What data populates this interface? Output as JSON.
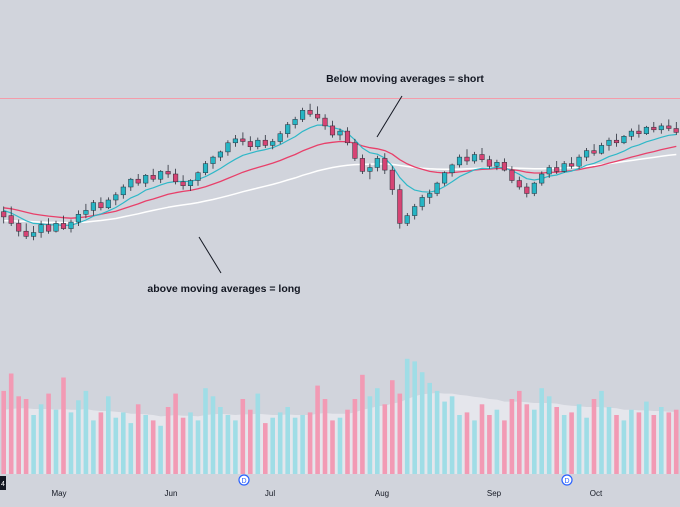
{
  "colors": {
    "background": "#d1d4dc",
    "bull_candle": "#26b5c4",
    "bear_candle": "#d64474",
    "ma_fast": "#2fb8c8",
    "ma_mid": "#e8406a",
    "ma_slow": "#ffffff",
    "resistance_line": "#ff8a9a",
    "bull_volume": "#9fdde6",
    "bear_volume": "#f29ab4",
    "volume_average_area": "#e9e9ef",
    "text": "#131722"
  },
  "annotations": {
    "short_label": "Below moving averages = short",
    "long_label": "above moving averages = long"
  },
  "x_axis": {
    "months": [
      "May",
      "Jun",
      "Jul",
      "Aug",
      "Sep",
      "Oct"
    ],
    "event_markers": [
      "D",
      "D"
    ],
    "corner_label": "4"
  },
  "chart_data": [
    {
      "type": "candlestick",
      "title": "",
      "x_ticks": [
        "May",
        "Jun",
        "Jul",
        "Aug",
        "Sep",
        "Oct"
      ],
      "y_range": [
        0,
        100
      ],
      "resistance_level": 89,
      "ohlc": [
        [
          45.5,
          47.5,
          41,
          43.5
        ],
        [
          44,
          47.5,
          40,
          41
        ],
        [
          41,
          42.5,
          36,
          38
        ],
        [
          38,
          41,
          35,
          36
        ],
        [
          36,
          40,
          34.5,
          37.5
        ],
        [
          37.5,
          42,
          35.5,
          40.5
        ],
        [
          40.5,
          43,
          37,
          38
        ],
        [
          38,
          42,
          37.5,
          41
        ],
        [
          41,
          44,
          38.5,
          39
        ],
        [
          39,
          42.5,
          37.5,
          41.5
        ],
        [
          41.5,
          46,
          40,
          44.5
        ],
        [
          44.5,
          48.5,
          43,
          46
        ],
        [
          46,
          50,
          44,
          49
        ],
        [
          49,
          51,
          46,
          47
        ],
        [
          47,
          51,
          46.5,
          50
        ],
        [
          50,
          53,
          48,
          52
        ],
        [
          52,
          56,
          50.5,
          55
        ],
        [
          55,
          58.5,
          53.5,
          58
        ],
        [
          58,
          60,
          55.5,
          56.5
        ],
        [
          56.5,
          60,
          55,
          59.5
        ],
        [
          59.5,
          62,
          57,
          58
        ],
        [
          58,
          61.5,
          56.5,
          61
        ],
        [
          61,
          63.5,
          58.5,
          60
        ],
        [
          60,
          62,
          56,
          57
        ],
        [
          57,
          59.5,
          54,
          55.5
        ],
        [
          55.5,
          58,
          53.5,
          57.5
        ],
        [
          57.5,
          61,
          55.5,
          60.5
        ],
        [
          60.5,
          65,
          59.5,
          64
        ],
        [
          64,
          67,
          62,
          66.5
        ],
        [
          66.5,
          69,
          65,
          68.5
        ],
        [
          68.5,
          73,
          67,
          72
        ],
        [
          72,
          75,
          70.5,
          73.5
        ],
        [
          73.5,
          76,
          71,
          72.5
        ],
        [
          72.5,
          74.5,
          69,
          70.5
        ],
        [
          70.5,
          74,
          69.5,
          73
        ],
        [
          73,
          75,
          70,
          71
        ],
        [
          71,
          73.5,
          69.5,
          72.5
        ],
        [
          72.5,
          76.5,
          71.5,
          75.5
        ],
        [
          75.5,
          80,
          74,
          79
        ],
        [
          79,
          82,
          77.5,
          81
        ],
        [
          81,
          85.5,
          80,
          84.5
        ],
        [
          84.5,
          87,
          82,
          83
        ],
        [
          83,
          86,
          80.5,
          81.5
        ],
        [
          81.5,
          83,
          77,
          78.5
        ],
        [
          78.5,
          80.5,
          74,
          75
        ],
        [
          75,
          77.5,
          73,
          76.5
        ],
        [
          76.5,
          78,
          71,
          72
        ],
        [
          72,
          73.5,
          65,
          66
        ],
        [
          66,
          67.5,
          60,
          61
        ],
        [
          61,
          64,
          58,
          62.5
        ],
        [
          62.5,
          67,
          61,
          66
        ],
        [
          66,
          68,
          60,
          61.5
        ],
        [
          61.5,
          63,
          52,
          54
        ],
        [
          54,
          56,
          39,
          41
        ],
        [
          41,
          45,
          40,
          44
        ],
        [
          44,
          48.5,
          42.5,
          47.5
        ],
        [
          47.5,
          52,
          46,
          51
        ],
        [
          51,
          54,
          48.5,
          52.5
        ],
        [
          52.5,
          57,
          51.5,
          56.5
        ],
        [
          56.5,
          61,
          55.5,
          60.5
        ],
        [
          60.5,
          64,
          59,
          63.5
        ],
        [
          63.5,
          67.5,
          62.5,
          66.5
        ],
        [
          66.5,
          69.5,
          63.5,
          65
        ],
        [
          65,
          68.5,
          64,
          67.5
        ],
        [
          67.5,
          70,
          64.5,
          65.5
        ],
        [
          65.5,
          67,
          62,
          63
        ],
        [
          63,
          65.5,
          61.5,
          64.5
        ],
        [
          64.5,
          66,
          61,
          61.5
        ],
        [
          61.5,
          63,
          56.5,
          57.5
        ],
        [
          57.5,
          59,
          54,
          55
        ],
        [
          55,
          56.5,
          51,
          52.5
        ],
        [
          52.5,
          57,
          51.5,
          56.5
        ],
        [
          56.5,
          61,
          55.5,
          60
        ],
        [
          60,
          63.5,
          58.5,
          62.5
        ],
        [
          62.5,
          65,
          60,
          61
        ],
        [
          61,
          65,
          60.5,
          64
        ],
        [
          64,
          66.5,
          62,
          63
        ],
        [
          63,
          67.5,
          62,
          66.5
        ],
        [
          66.5,
          70,
          65,
          69
        ],
        [
          69,
          71.5,
          67,
          68
        ],
        [
          68,
          72,
          67.5,
          71
        ],
        [
          71,
          74,
          69,
          73
        ],
        [
          73,
          75.5,
          70.5,
          72
        ],
        [
          72,
          75,
          71.5,
          74.5
        ],
        [
          74.5,
          77.5,
          73,
          76.5
        ],
        [
          76.5,
          79,
          74,
          75.5
        ],
        [
          75.5,
          78.5,
          75,
          78
        ],
        [
          78,
          80,
          76,
          77
        ],
        [
          77,
          79.5,
          75.5,
          78.5
        ],
        [
          78.5,
          81,
          76.5,
          77.5
        ],
        [
          77.5,
          80,
          75,
          76
        ]
      ],
      "ma_fast": [
        46,
        45,
        43.5,
        42,
        41,
        40.8,
        40.4,
        40.5,
        40.2,
        40.3,
        41.2,
        42.3,
        43.8,
        44.6,
        45.8,
        47.1,
        48.9,
        50.8,
        52,
        53.8,
        54.7,
        55.8,
        56.7,
        57.1,
        57.1,
        57.2,
        57.9,
        59,
        60.5,
        62.1,
        64,
        65.7,
        67.2,
        68,
        68.8,
        69.4,
        70.1,
        71.3,
        72.9,
        74.4,
        76.4,
        77.8,
        78.8,
        78.8,
        77.9,
        77.2,
        75.7,
        73.1,
        70,
        68.2,
        67.6,
        66.1,
        63.1,
        58.6,
        55.6,
        53.8,
        53.2,
        53,
        53.7,
        55.2,
        57,
        59,
        60.3,
        61.6,
        62.2,
        62.1,
        62.6,
        62.4,
        61.3,
        59.9,
        58.2,
        57.7,
        58.2,
        59.2,
        59.6,
        60.6,
        61.1,
        62.1,
        63.4,
        64.1,
        65.3,
        66.7,
        67.6,
        68.8,
        70.3,
        71.2,
        72.4,
        73.2,
        74.1,
        74.9,
        75.2
      ],
      "ma_mid": [
        47,
        46.6,
        46,
        45.3,
        44.6,
        44.2,
        43.8,
        43.5,
        43.2,
        43,
        43.2,
        43.5,
        44,
        44.5,
        45.1,
        45.7,
        46.6,
        47.6,
        48.5,
        49.6,
        50.4,
        51.3,
        52.2,
        52.8,
        53.3,
        53.7,
        54.3,
        55.1,
        56.1,
        57.1,
        58.3,
        59.5,
        60.7,
        61.6,
        62.5,
        63.3,
        64.2,
        65.2,
        66.4,
        67.5,
        68.9,
        70,
        71.1,
        71.8,
        72.2,
        72.5,
        72.4,
        71.8,
        70.8,
        70.1,
        69.7,
        69,
        67.6,
        65.5,
        63.9,
        62.7,
        61.8,
        61,
        60.6,
        60.4,
        60.5,
        60.8,
        61.1,
        61.5,
        61.8,
        61.9,
        62.1,
        62.1,
        61.7,
        61.3,
        60.7,
        60.4,
        60.4,
        60.6,
        60.7,
        61,
        61.3,
        61.7,
        62.3,
        62.8,
        63.4,
        64.2,
        64.9,
        65.7,
        66.5,
        67.2,
        68,
        68.6,
        69.4,
        70,
        70.6
      ],
      "ma_slow": [
        42,
        42,
        41.9,
        41.8,
        41.6,
        41.5,
        41.4,
        41.4,
        41.3,
        41.3,
        41.4,
        41.5,
        41.8,
        42.1,
        42.5,
        42.9,
        43.5,
        44.1,
        44.7,
        45.4,
        46,
        46.6,
        47.2,
        47.7,
        48.1,
        48.5,
        49,
        49.6,
        50.2,
        50.9,
        51.6,
        52.4,
        53.2,
        53.9,
        54.6,
        55.3,
        56,
        56.8,
        57.7,
        58.5,
        59.5,
        60.3,
        61.2,
        61.9,
        62.5,
        63,
        63.4,
        63.6,
        63.7,
        63.8,
        63.9,
        63.9,
        63.7,
        63.3,
        62.9,
        62.5,
        62.2,
        62,
        61.9,
        61.8,
        61.8,
        61.9,
        62,
        62.1,
        62.2,
        62.3,
        62.4,
        62.4,
        62.3,
        62.2,
        62.1,
        62,
        62,
        62.1,
        62.2,
        62.3,
        62.5,
        62.7,
        63,
        63.3,
        63.6,
        64,
        64.4,
        64.8,
        65.2,
        65.6,
        66,
        66.4,
        66.8,
        67.2,
        67.5
      ]
    },
    {
      "type": "bar",
      "title": "",
      "series_kind": "volume",
      "y_range": [
        0,
        100
      ],
      "values": [
        62,
        75,
        58,
        56,
        44,
        52,
        60,
        48,
        72,
        46,
        55,
        62,
        40,
        46,
        58,
        42,
        46,
        38,
        52,
        44,
        40,
        36,
        50,
        60,
        42,
        46,
        40,
        64,
        58,
        50,
        44,
        40,
        56,
        48,
        60,
        38,
        42,
        46,
        50,
        42,
        44,
        46,
        66,
        56,
        40,
        42,
        48,
        56,
        74,
        58,
        64,
        52,
        70,
        60,
        86,
        84,
        76,
        68,
        62,
        54,
        58,
        44,
        46,
        40,
        52,
        44,
        48,
        40,
        56,
        62,
        52,
        48,
        64,
        58,
        50,
        44,
        46,
        52,
        42,
        56,
        62,
        50,
        44,
        40,
        48,
        46,
        54,
        44,
        50,
        46,
        48
      ],
      "average": [
        48,
        48.5,
        49,
        49,
        48.5,
        48.5,
        48.5,
        48,
        48.5,
        48,
        48,
        48.5,
        47.5,
        47,
        47,
        46.5,
        46,
        45,
        45,
        44.5,
        44,
        43,
        43.5,
        44,
        43.5,
        43.5,
        43,
        44,
        44.5,
        45,
        44.5,
        44,
        44.5,
        44.5,
        45,
        44.5,
        44,
        44,
        44.5,
        44,
        44,
        44,
        45,
        45.5,
        45,
        45,
        45,
        46,
        48,
        49,
        50.5,
        51,
        52.5,
        53.5,
        56,
        58,
        59.5,
        60,
        60.5,
        60,
        60,
        59,
        58.5,
        57.5,
        57,
        56,
        55.5,
        54,
        54,
        54,
        53.5,
        53,
        53,
        53,
        52.5,
        51.5,
        51,
        50.5,
        50,
        50,
        50,
        49.5,
        49,
        48,
        48,
        47.5,
        47.5,
        47,
        47,
        46.5,
        46.5
      ]
    }
  ]
}
